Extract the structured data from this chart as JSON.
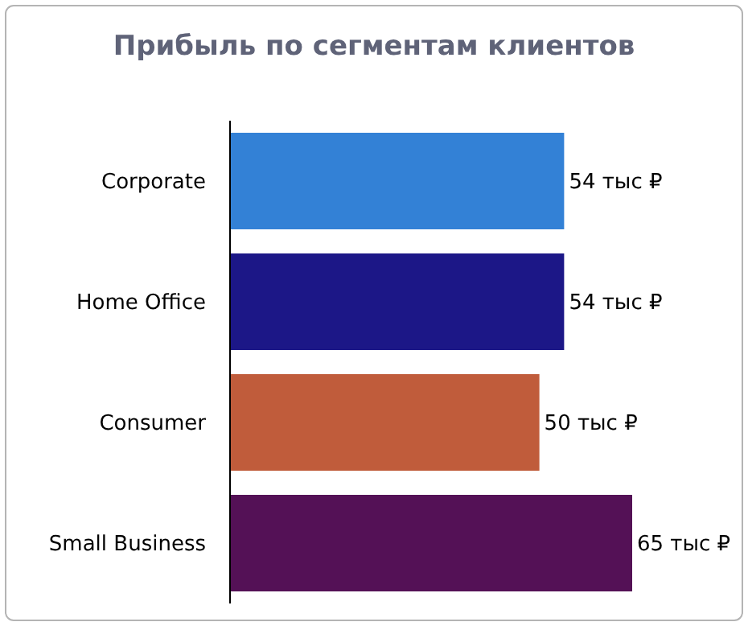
{
  "chart_data": {
    "type": "bar",
    "orientation": "horizontal",
    "title": "Прибыль по сегментам клиентов",
    "categories": [
      "Corporate",
      "Home Office",
      "Consumer",
      "Small Business"
    ],
    "values": [
      54,
      54,
      50,
      65
    ],
    "colors": [
      "#3381d6",
      "#1c1787",
      "#c05c3b",
      "#541156"
    ],
    "value_labels": [
      "54 тыс ₽",
      "54 тыс ₽",
      "50 тыс ₽",
      "65 тыс ₽"
    ],
    "tick_labels": "y"
  }
}
